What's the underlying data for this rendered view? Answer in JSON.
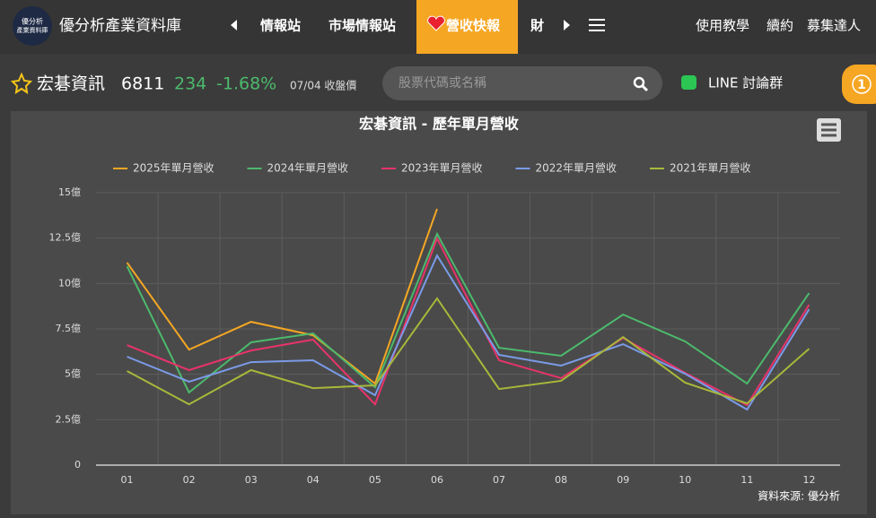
{
  "header": {
    "brand": "優分析產業資料庫",
    "logo_lines": [
      "優分析",
      "產業資料庫"
    ],
    "nav": [
      "情報站",
      "市場情報站",
      "營收快報",
      "財"
    ],
    "links": [
      "使用教學",
      "續約",
      "募集達人"
    ]
  },
  "stock": {
    "name": "宏碁資訊",
    "code": "6811",
    "price": "234",
    "change": "-1.68%",
    "date": "07/04 收盤價"
  },
  "search_placeholder": "股票代碼或名稱",
  "line_group": "LINE 討論群",
  "badge": "1",
  "chart_data": {
    "type": "line",
    "title": "宏碁資訊 - 歷年單月營收",
    "source": "資料來源: 優分析",
    "categories": [
      "01",
      "02",
      "03",
      "04",
      "05",
      "06",
      "07",
      "08",
      "09",
      "10",
      "11",
      "12"
    ],
    "series": [
      {
        "name": "2025年單月營收",
        "color": "#f5a623",
        "values": [
          11.15,
          6.36,
          7.89,
          7.15,
          4.49,
          14.11,
          null,
          null,
          null,
          null,
          null,
          null
        ]
      },
      {
        "name": "2024年單月營收",
        "color": "#4cba6c",
        "values": [
          10.95,
          4.0,
          6.76,
          7.25,
          4.29,
          12.73,
          6.46,
          6.02,
          8.29,
          6.81,
          4.49,
          9.47
        ]
      },
      {
        "name": "2023年單月營收",
        "color": "#e8336b",
        "values": [
          6.61,
          5.23,
          6.31,
          6.91,
          3.35,
          12.48,
          5.77,
          4.79,
          7.0,
          5.08,
          3.3,
          8.83
        ]
      },
      {
        "name": "2022年單月營收",
        "color": "#7b9be8",
        "values": [
          5.97,
          4.59,
          5.67,
          5.77,
          3.85,
          11.54,
          6.07,
          5.48,
          6.66,
          5.03,
          3.06,
          8.58
        ]
      },
      {
        "name": "2021年單月營收",
        "color": "#a8b83a",
        "values": [
          5.18,
          3.35,
          5.23,
          4.24,
          4.39,
          9.18,
          4.19,
          4.64,
          7.05,
          4.54,
          3.4,
          6.41
        ]
      }
    ],
    "ylim": [
      0,
      15
    ],
    "yticks": [
      0,
      {
        "value": 2.5,
        "label": "2.5億"
      },
      {
        "value": 5,
        "label": "5億"
      },
      {
        "value": 7.5,
        "label": "7.5億"
      },
      {
        "value": 10,
        "label": "10億"
      },
      {
        "value": 12.5,
        "label": "12.5億"
      },
      {
        "value": 15,
        "label": "15億"
      }
    ],
    "grid": true,
    "legend": "top"
  }
}
